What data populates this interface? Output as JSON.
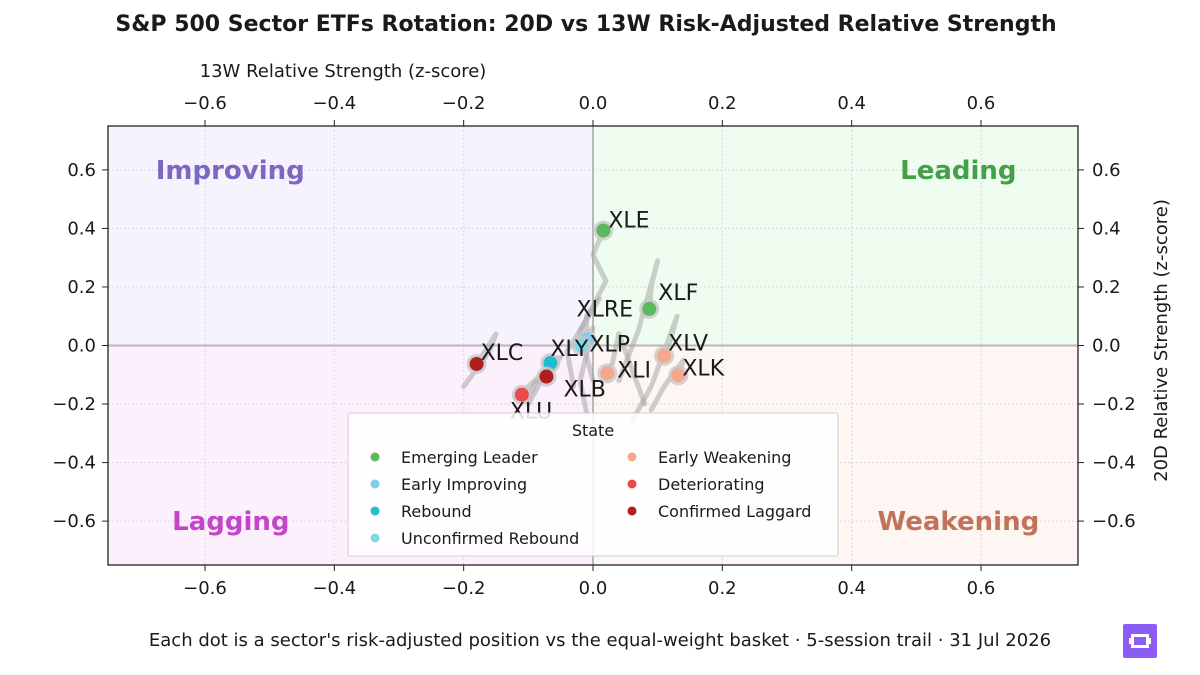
{
  "chart_data": {
    "type": "scatter",
    "title": "S&P 500 Sector ETFs Rotation: 20D vs 13W Risk-Adjusted Relative Strength",
    "xlabel": "13W Relative Strength (z-score)",
    "ylabel": "20D Relative Strength (z-score)",
    "xlim": [
      -0.75,
      0.75
    ],
    "ylim": [
      -0.75,
      0.75
    ],
    "xticks": [
      -0.6,
      -0.4,
      -0.2,
      0.0,
      0.2,
      0.4,
      0.6
    ],
    "yticks": [
      -0.6,
      -0.4,
      -0.2,
      0.0,
      0.2,
      0.4,
      0.6
    ],
    "tick_labels": [
      "−0.6",
      "−0.4",
      "−0.2",
      "0.0",
      "0.2",
      "0.4",
      "0.6"
    ],
    "grid": true,
    "x_axis_position": "top and bottom",
    "y_axis_position": "left and right",
    "quadrants": [
      {
        "name": "Improving",
        "color": "#7b68c0",
        "fill": "#f6f3ff"
      },
      {
        "name": "Leading",
        "color": "#43a047",
        "fill": "#effdf0"
      },
      {
        "name": "Lagging",
        "color": "#c445c9",
        "fill": "#fdf0fd"
      },
      {
        "name": "Weakening",
        "color": "#c0735a",
        "fill": "#fdf6f3"
      }
    ],
    "legend": {
      "title": "State",
      "placement": "lower center",
      "columns": 2,
      "entries": [
        {
          "label": "Emerging Leader",
          "color": "#5cb85c"
        },
        {
          "label": "Early Improving",
          "color": "#81cdee"
        },
        {
          "label": "Rebound",
          "color": "#1fbcd2"
        },
        {
          "label": "Unconfirmed Rebound",
          "color": "#80d8e6"
        },
        {
          "label": "Early Weakening",
          "color": "#f4a98e"
        },
        {
          "label": "Deteriorating",
          "color": "#e84b4b"
        },
        {
          "label": "Confirmed Laggard",
          "color": "#b01e1e"
        }
      ]
    },
    "series": [
      {
        "name": "XLE",
        "state": "Emerging Leader",
        "color": "#5cb85c",
        "x": 0.016,
        "y": 0.393,
        "trail": [
          [
            0.0,
            -0.12
          ],
          [
            -0.02,
            0.05
          ],
          [
            0.02,
            0.22
          ],
          [
            0.0,
            0.31
          ],
          [
            0.016,
            0.393
          ]
        ]
      },
      {
        "name": "XLF",
        "state": "Emerging Leader",
        "color": "#5cb85c",
        "x": 0.087,
        "y": 0.125,
        "trail": [
          [
            0.04,
            -0.12
          ],
          [
            0.07,
            0.05
          ],
          [
            0.1,
            0.29
          ],
          [
            0.09,
            0.2
          ],
          [
            0.087,
            0.125
          ]
        ]
      },
      {
        "name": "XLRE",
        "state": "Early Improving",
        "color": "#81cdee",
        "x": -0.01,
        "y": 0.02,
        "trail": [
          [
            -0.03,
            -0.14
          ],
          [
            -0.04,
            -0.02
          ],
          [
            0.01,
            0.16
          ],
          [
            -0.01,
            0.1
          ],
          [
            -0.01,
            0.02
          ]
        ]
      },
      {
        "name": "XLP",
        "state": "Unconfirmed Rebound",
        "color": "#80d8e6",
        "x": -0.018,
        "y": 0.0,
        "trail": [
          [
            -0.01,
            -0.23
          ],
          [
            -0.02,
            -0.12
          ],
          [
            0.0,
            0.06
          ],
          [
            -0.01,
            0.03
          ],
          [
            -0.018,
            0.0
          ]
        ]
      },
      {
        "name": "XLY",
        "state": "Rebound",
        "color": "#1fbcd2",
        "x": -0.066,
        "y": -0.06,
        "trail": [
          [
            -0.1,
            -0.2
          ],
          [
            -0.08,
            -0.12
          ],
          [
            -0.05,
            -0.04
          ],
          [
            -0.06,
            -0.05
          ],
          [
            -0.066,
            -0.06
          ]
        ]
      },
      {
        "name": "XLC",
        "state": "Confirmed Laggard",
        "color": "#b01e1e",
        "x": -0.18,
        "y": -0.063,
        "trail": [
          [
            -0.2,
            -0.14
          ],
          [
            -0.16,
            -0.02
          ],
          [
            -0.15,
            0.04
          ],
          [
            -0.17,
            -0.03
          ],
          [
            -0.18,
            -0.063
          ]
        ]
      },
      {
        "name": "XLB",
        "state": "Confirmed Laggard",
        "color": "#b01e1e",
        "x": -0.072,
        "y": -0.106,
        "trail": [
          [
            -0.1,
            -0.18
          ],
          [
            -0.09,
            -0.13
          ],
          [
            -0.06,
            -0.08
          ],
          [
            -0.07,
            -0.1
          ],
          [
            -0.072,
            -0.106
          ]
        ]
      },
      {
        "name": "XLU",
        "state": "Deteriorating",
        "color": "#e84b4b",
        "x": -0.11,
        "y": -0.168,
        "trail": [
          [
            -0.08,
            -0.1
          ],
          [
            -0.1,
            -0.14
          ],
          [
            -0.12,
            -0.18
          ],
          [
            -0.11,
            -0.17
          ],
          [
            -0.11,
            -0.168
          ]
        ]
      },
      {
        "name": "XLI",
        "state": "Early Weakening",
        "color": "#f4a98e",
        "x": 0.022,
        "y": -0.095,
        "trail": [
          [
            0.08,
            -0.2
          ],
          [
            0.06,
            -0.08
          ],
          [
            0.04,
            0.04
          ],
          [
            0.03,
            -0.06
          ],
          [
            0.022,
            -0.095
          ]
        ]
      },
      {
        "name": "XLV",
        "state": "Early Weakening",
        "color": "#f4a98e",
        "x": 0.11,
        "y": -0.035,
        "trail": [
          [
            0.06,
            -0.26
          ],
          [
            0.09,
            -0.14
          ],
          [
            0.13,
            0.1
          ],
          [
            0.12,
            0.02
          ],
          [
            0.11,
            -0.035
          ]
        ]
      },
      {
        "name": "XLK",
        "state": "Early Weakening",
        "color": "#f4a98e",
        "x": 0.132,
        "y": -0.102,
        "trail": [
          [
            0.09,
            -0.22
          ],
          [
            0.11,
            -0.14
          ],
          [
            0.14,
            -0.05
          ],
          [
            0.135,
            -0.08
          ],
          [
            0.132,
            -0.102
          ]
        ]
      }
    ]
  },
  "caption": "Each dot is a sector's risk-adjusted position vs the equal-weight basket · 5-session trail · 31 Jul 2026",
  "logo": {
    "icon": "brand-logo-icon",
    "color": "#8b5cf6"
  }
}
